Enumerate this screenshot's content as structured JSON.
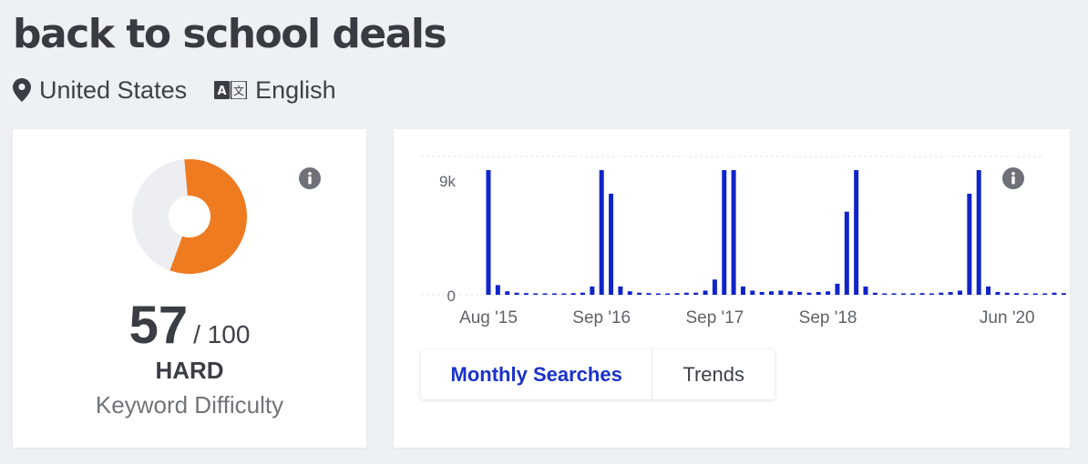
{
  "keyword": "back to school deals",
  "location": "United States",
  "language": "English",
  "colors": {
    "accent": "#ef7b21",
    "track": "#eceef1",
    "bar": "#1024c8",
    "active_tab": "#1a32c8"
  },
  "difficulty": {
    "score": "57",
    "max": "/ 100",
    "level": "HARD",
    "label": "Keyword Difficulty",
    "fraction": 0.57
  },
  "tabs": {
    "monthly": "Monthly Searches",
    "trends": "Trends"
  },
  "chart_data": {
    "type": "bar",
    "title": "",
    "xlabel": "",
    "ylabel": "",
    "y_ticks": [
      "9k",
      "0"
    ],
    "ylim": [
      0,
      9000
    ],
    "x_tick_labels": [
      "Aug '15",
      "Sep '16",
      "Sep '17",
      "Sep '18",
      "Jun '20"
    ],
    "x_tick_indices": [
      0,
      12,
      24,
      36,
      55
    ],
    "series": [
      {
        "values": [
          9000,
          700,
          250,
          150,
          120,
          100,
          100,
          100,
          100,
          120,
          150,
          600,
          9000,
          7300,
          600,
          250,
          150,
          120,
          100,
          100,
          120,
          150,
          150,
          300,
          1100,
          9000,
          9000,
          600,
          300,
          200,
          250,
          300,
          250,
          200,
          150,
          200,
          250,
          800,
          6000,
          9000,
          600,
          150,
          100,
          100,
          100,
          100,
          120,
          100,
          150,
          200,
          300,
          7300,
          9000,
          600,
          200,
          150,
          120,
          100,
          100,
          100,
          150,
          120,
          100,
          100,
          300,
          700
        ]
      }
    ],
    "grid": true
  }
}
